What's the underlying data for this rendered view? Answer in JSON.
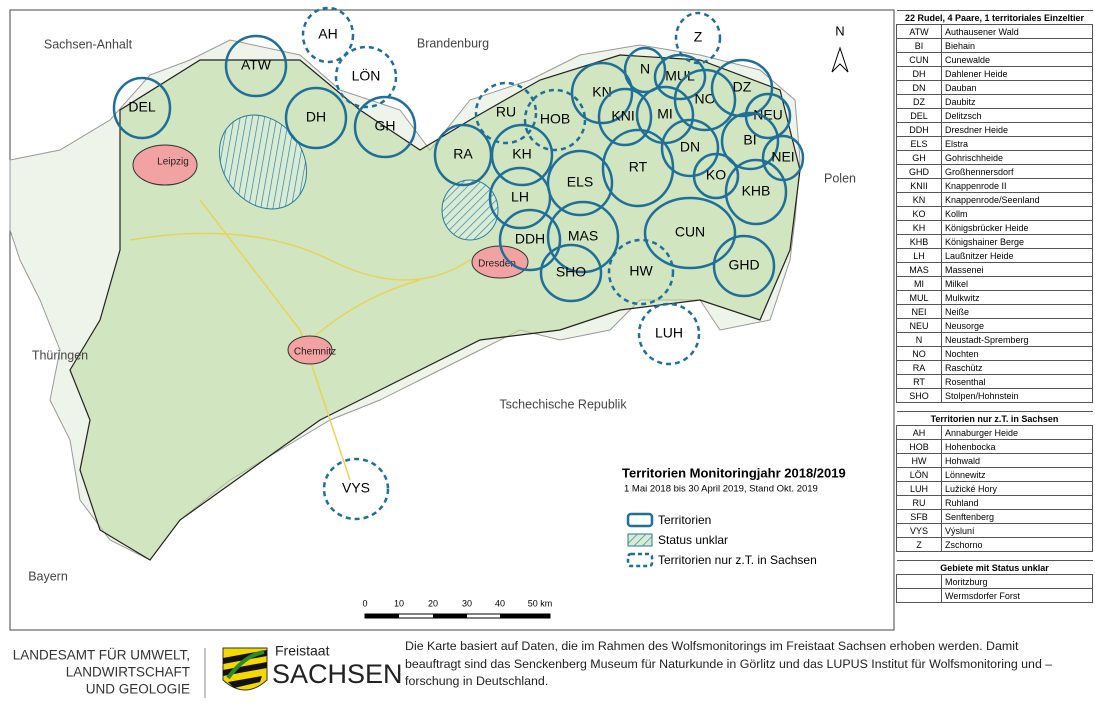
{
  "map": {
    "regions": [
      "Sachsen-Anhalt",
      "Brandenburg",
      "Polen",
      "Thüringen",
      "Tschechische Republik",
      "Bayern"
    ],
    "cities": [
      "Leipzig",
      "Dresden",
      "Chemnitz"
    ],
    "north": "N",
    "territories": [
      "DEL",
      "ATW",
      "DH",
      "GH",
      "RA",
      "KH",
      "LH",
      "ELS",
      "RT",
      "KN",
      "N",
      "MUL",
      "NO",
      "DZ",
      "KNII",
      "MI",
      "NEU",
      "BI",
      "NEI",
      "DN",
      "KO",
      "KHB",
      "DDH",
      "MAS",
      "SHO",
      "CUN",
      "GHD"
    ],
    "partial_territories": [
      "AH",
      "LÖN",
      "Z",
      "RU",
      "HOB",
      "HW",
      "LUH",
      "VYS"
    ],
    "scale": [
      "0",
      "10",
      "20",
      "30",
      "40",
      "50 km"
    ]
  },
  "legend": {
    "title": "Territorien Monitoringjahr 2018/2019",
    "subtitle": "1 Mai 2018 bis 30 April 2019, Stand Okt. 2019",
    "items": [
      "Territorien",
      "Status unklar",
      "Territorien nur z.T. in Sachsen"
    ]
  },
  "table": {
    "sections": [
      {
        "title": "22 Rudel, 4 Paare, 1 territoriales Einzeltier",
        "rows": [
          [
            "ATW",
            "Authausener Wald"
          ],
          [
            "BI",
            "Biehain"
          ],
          [
            "CUN",
            "Cunewalde"
          ],
          [
            "DH",
            "Dahlener Heide"
          ],
          [
            "DN",
            "Dauban"
          ],
          [
            "DZ",
            "Daubitz"
          ],
          [
            "DEL",
            "Delitzsch"
          ],
          [
            "DDH",
            "Dresdner Heide"
          ],
          [
            "ELS",
            "Elstra"
          ],
          [
            "GH",
            "Gohrischheide"
          ],
          [
            "GHD",
            "Großhennersdorf"
          ],
          [
            "KNII",
            "Knappenrode II"
          ],
          [
            "KN",
            "Knappenrode/Seenland"
          ],
          [
            "KO",
            "Kollm"
          ],
          [
            "KH",
            "Königsbrücker Heide"
          ],
          [
            "KHB",
            "Königshainer Berge"
          ],
          [
            "LH",
            "Laußnitzer Heide"
          ],
          [
            "MAS",
            "Massenei"
          ],
          [
            "MI",
            "Milkel"
          ],
          [
            "MUL",
            "Mulkwitz"
          ],
          [
            "NEI",
            "Neiße"
          ],
          [
            "NEU",
            "Neusorge"
          ],
          [
            "N",
            "Neustadt-Spremberg"
          ],
          [
            "NO",
            "Nochten"
          ],
          [
            "RA",
            "Raschütz"
          ],
          [
            "RT",
            "Rosenthal"
          ],
          [
            "SHO",
            "Stolpen/Hohnstein"
          ]
        ]
      },
      {
        "title": "Territorien nur z.T. in Sachsen",
        "rows": [
          [
            "AH",
            "Annaburger Heide"
          ],
          [
            "HOB",
            "Hohenbocka"
          ],
          [
            "HW",
            "Hohwald"
          ],
          [
            "LÖN",
            "Lönnewitz"
          ],
          [
            "LUH",
            "Lužické Hory"
          ],
          [
            "RU",
            "Ruhland"
          ],
          [
            "SFB",
            "Senftenberg"
          ],
          [
            "VYS",
            "Výsluní"
          ],
          [
            "Z",
            "Zschorno"
          ]
        ]
      },
      {
        "title": "Gebiete mit Status unklar",
        "rows": [
          [
            "Moritzburg"
          ],
          [
            "Wermsdorfer Forst"
          ]
        ]
      }
    ]
  },
  "footer": {
    "agency": [
      "LANDESAMT FÜR UMWELT,",
      "LANDWIRTSCHAFT",
      "UND GEOLOGIE"
    ],
    "state": [
      "Freistaat",
      "SACHSEN"
    ],
    "note": "Die Karte basiert auf Daten, die im Rahmen des Wolfsmonitorings im Freistaat Sachsen erhoben werden. Damit beauftragt sind das Senckenberg Museum für Naturkunde in Görlitz und das LUPUS Institut für Wolfsmonitoring und –forschung in Deutschland."
  }
}
